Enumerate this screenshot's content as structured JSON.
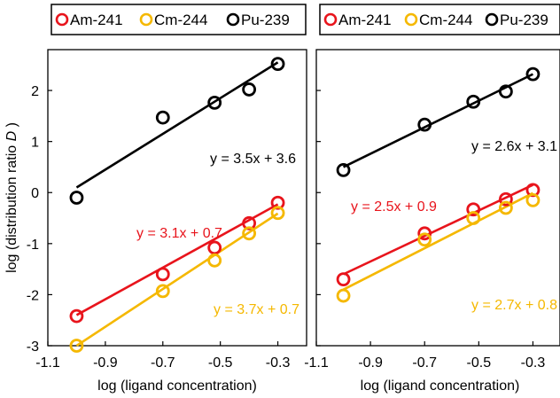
{
  "chart_data": [
    {
      "type": "scatter",
      "xlabel": "log (ligand concentration)",
      "ylabel_main": "log (distribution ratio ",
      "ylabel_italic": "D",
      "ylabel_close": " )",
      "xlim": [
        -1.1,
        -0.2
      ],
      "ylim": [
        -3,
        2.8
      ],
      "xticks": [
        "-1.1",
        "-0.9",
        "-0.7",
        "-0.5",
        "-0.3"
      ],
      "yticks": [
        "-3",
        "-2",
        "-1",
        "0",
        "1",
        "2"
      ],
      "legend_position": "top",
      "series": [
        {
          "name": "Am-241",
          "color": "#e8141c",
          "x": [
            -1.0,
            -0.7,
            -0.52,
            -0.4,
            -0.3
          ],
          "y": [
            -2.42,
            -1.6,
            -1.08,
            -0.6,
            -0.2
          ],
          "fit": {
            "slope": 3.1,
            "intercept": 0.7
          },
          "equation": "y = 3.1x + 0.7"
        },
        {
          "name": "Cm-244",
          "color": "#f5b800",
          "x": [
            -1.0,
            -0.7,
            -0.52,
            -0.4,
            -0.3
          ],
          "y": [
            -3.0,
            -1.93,
            -1.33,
            -0.8,
            -0.4
          ],
          "fit": {
            "slope": 3.7,
            "intercept": 0.7
          },
          "equation": "y = 3.7x + 0.7"
        },
        {
          "name": "Pu-239",
          "color": "#000000",
          "x": [
            -1.0,
            -0.7,
            -0.52,
            -0.4,
            -0.3
          ],
          "y": [
            -0.1,
            1.47,
            1.76,
            2.02,
            2.52
          ],
          "fit": {
            "slope": 3.5,
            "intercept": 3.6
          },
          "equation": "y = 3.5x + 3.6"
        }
      ]
    },
    {
      "type": "scatter",
      "xlabel": "log (ligand concentration)",
      "xlim": [
        -1.1,
        -0.2
      ],
      "ylim": [
        -3,
        2.8
      ],
      "xticks": [
        "-1.1",
        "-0.9",
        "-0.7",
        "-0.5",
        "-0.3"
      ],
      "legend_position": "top",
      "series": [
        {
          "name": "Am-241",
          "color": "#e8141c",
          "x": [
            -1.0,
            -0.7,
            -0.52,
            -0.4,
            -0.3
          ],
          "y": [
            -1.7,
            -0.8,
            -0.33,
            -0.13,
            0.05
          ],
          "fit": {
            "slope": 2.5,
            "intercept": 0.9
          },
          "equation": "y = 2.5x + 0.9"
        },
        {
          "name": "Cm-244",
          "color": "#f5b800",
          "x": [
            -1.0,
            -0.7,
            -0.52,
            -0.4,
            -0.3
          ],
          "y": [
            -2.02,
            -0.92,
            -0.5,
            -0.3,
            -0.15
          ],
          "fit": {
            "slope": 2.7,
            "intercept": 0.8
          },
          "equation": "y = 2.7x + 0.8"
        },
        {
          "name": "Pu-239",
          "color": "#000000",
          "x": [
            -1.0,
            -0.7,
            -0.52,
            -0.4,
            -0.3
          ],
          "y": [
            0.44,
            1.33,
            1.78,
            1.98,
            2.32
          ],
          "fit": {
            "slope": 2.6,
            "intercept": 3.1
          },
          "equation": "y = 2.6x + 3.1"
        }
      ]
    }
  ]
}
